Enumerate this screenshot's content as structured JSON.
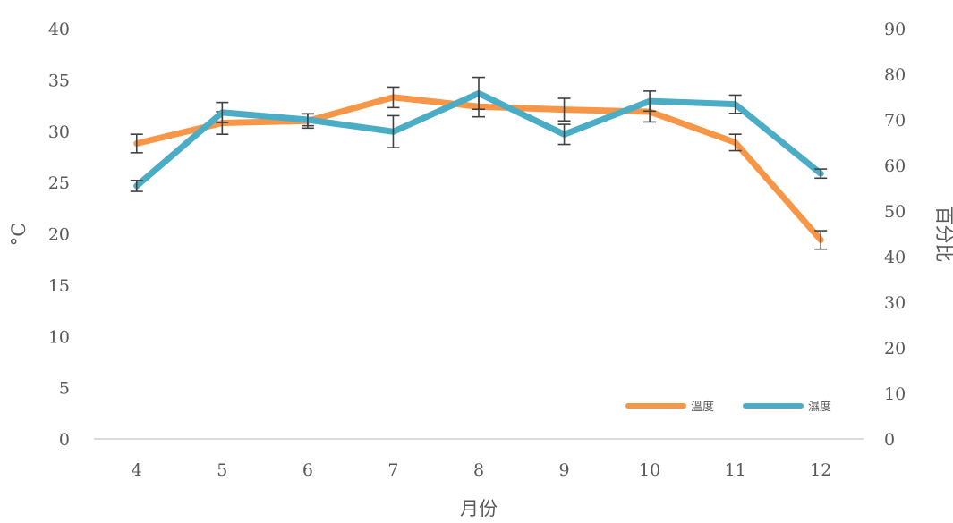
{
  "chart_data": {
    "type": "line",
    "title": "",
    "xlabel": "月份",
    "ylabel": "°C",
    "y2label": "百分比",
    "categories": [
      "4",
      "5",
      "6",
      "7",
      "8",
      "9",
      "10",
      "11",
      "12"
    ],
    "ylim": [
      0,
      40
    ],
    "y2lim": [
      0,
      90
    ],
    "yticks": [
      "0",
      "5",
      "10",
      "15",
      "20",
      "25",
      "30",
      "35",
      "40"
    ],
    "y2ticks": [
      "0",
      "10",
      "20",
      "30",
      "40",
      "50",
      "60",
      "70",
      "80",
      "90"
    ],
    "grid": false,
    "legend_position": "bottom-right",
    "series": [
      {
        "name": "溫度",
        "axis": "left",
        "color": "#F79646",
        "values": [
          28.8,
          30.8,
          31.0,
          33.3,
          32.4,
          32.1,
          31.9,
          28.9,
          19.4
        ],
        "errors": [
          0.9,
          1.1,
          0.7,
          1.0,
          1.0,
          1.1,
          1.0,
          0.8,
          0.9
        ]
      },
      {
        "name": "濕度",
        "axis": "right",
        "color": "#4BACC6",
        "values": [
          55.5,
          71.6,
          70.0,
          67.4,
          75.8,
          66.8,
          74.1,
          73.4,
          58.2
        ],
        "errors": [
          1.2,
          2.2,
          1.3,
          3.5,
          3.5,
          2.2,
          2.2,
          2.0,
          1.0
        ]
      }
    ]
  }
}
